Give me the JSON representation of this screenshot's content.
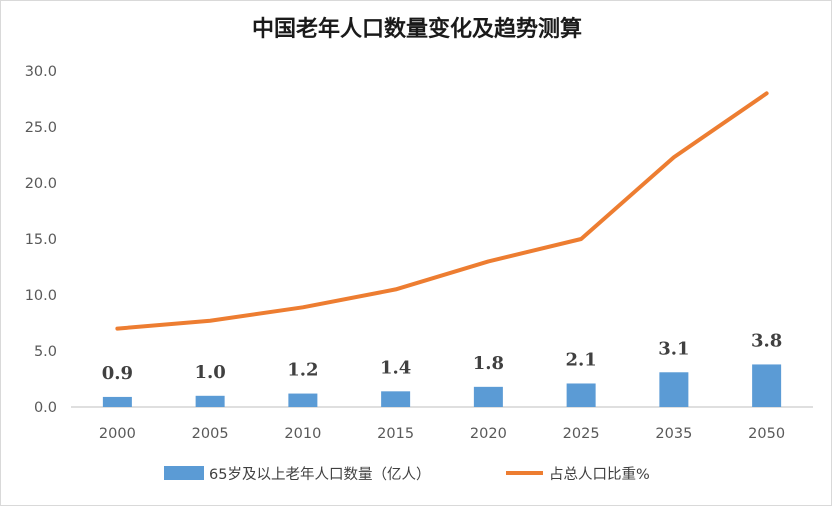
{
  "chart_data": {
    "type": "bar+line",
    "title": "中国老年人口数量变化及趋势测算",
    "categories": [
      "2000",
      "2005",
      "2010",
      "2015",
      "2020",
      "2025",
      "2035",
      "2050"
    ],
    "series": [
      {
        "name": "65岁及以上老年人口数量（亿人）",
        "type": "bar",
        "color": "#5b9bd5",
        "values": [
          0.9,
          1.0,
          1.2,
          1.4,
          1.8,
          2.1,
          3.1,
          3.8
        ],
        "data_labels": [
          "0.9",
          "1.0",
          "1.2",
          "1.4",
          "1.8",
          "2.1",
          "3.1",
          "3.8"
        ]
      },
      {
        "name": "占总人口比重%",
        "type": "line",
        "color": "#ed7d31",
        "values": [
          7.0,
          7.7,
          8.9,
          10.5,
          13.0,
          15.0,
          22.3,
          28.0
        ]
      }
    ],
    "ylim": [
      0,
      30
    ],
    "y_ticks": [
      "0.0",
      "5.0",
      "10.0",
      "15.0",
      "20.0",
      "25.0",
      "30.0"
    ],
    "grid": false,
    "legend_position": "bottom"
  }
}
